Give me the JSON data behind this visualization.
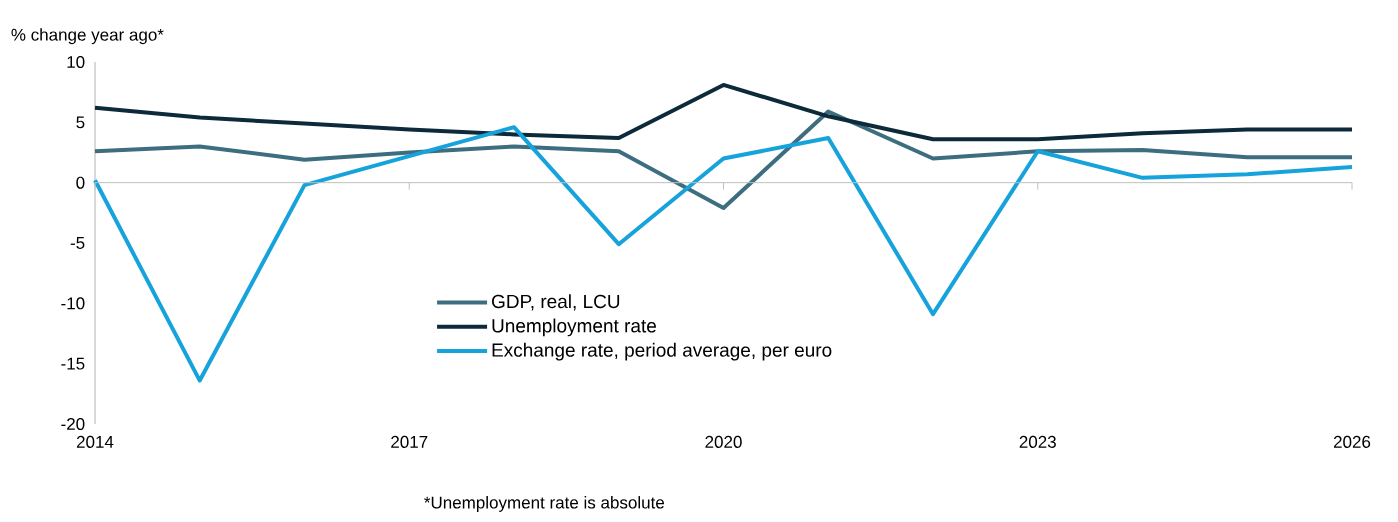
{
  "chart_data": {
    "type": "line",
    "ylabel": "% change year ago*",
    "annotations": [
      "*Unemployment rate is absolute"
    ],
    "x": [
      2014,
      2015,
      2016,
      2017,
      2018,
      2019,
      2020,
      2021,
      2022,
      2023,
      2024,
      2025,
      2026
    ],
    "series": [
      {
        "name": "GDP, real, LCU",
        "color": "#3d6e80",
        "values": [
          2.6,
          3.0,
          1.9,
          2.5,
          3.0,
          2.6,
          -2.1,
          5.9,
          2.0,
          2.6,
          2.7,
          2.1,
          2.1
        ]
      },
      {
        "name": "Unemployment rate",
        "color": "#0d2a3a",
        "values": [
          6.2,
          5.4,
          4.9,
          4.4,
          4.0,
          3.7,
          8.1,
          5.5,
          3.6,
          3.6,
          4.1,
          4.4,
          4.4
        ]
      },
      {
        "name": "Exchange rate, period average, per euro",
        "color": "#16a3dc",
        "values": [
          0.2,
          -16.4,
          -0.2,
          2.2,
          4.6,
          -5.1,
          2.0,
          3.7,
          -10.9,
          2.6,
          0.4,
          0.7,
          1.3
        ]
      }
    ],
    "xlim": [
      2014,
      2026
    ],
    "xticks": [
      2014,
      2017,
      2020,
      2023,
      2026
    ],
    "ylim": [
      -20,
      10
    ],
    "yticks": [
      -20,
      -15,
      -10,
      -5,
      0,
      5,
      10
    ],
    "ref_lines": [
      {
        "axis": "y",
        "value": 0,
        "color": "#bfbfbf",
        "line_style": "solid"
      }
    ],
    "grid": false,
    "legend": "center",
    "marker": "none",
    "line_style": "solid"
  }
}
